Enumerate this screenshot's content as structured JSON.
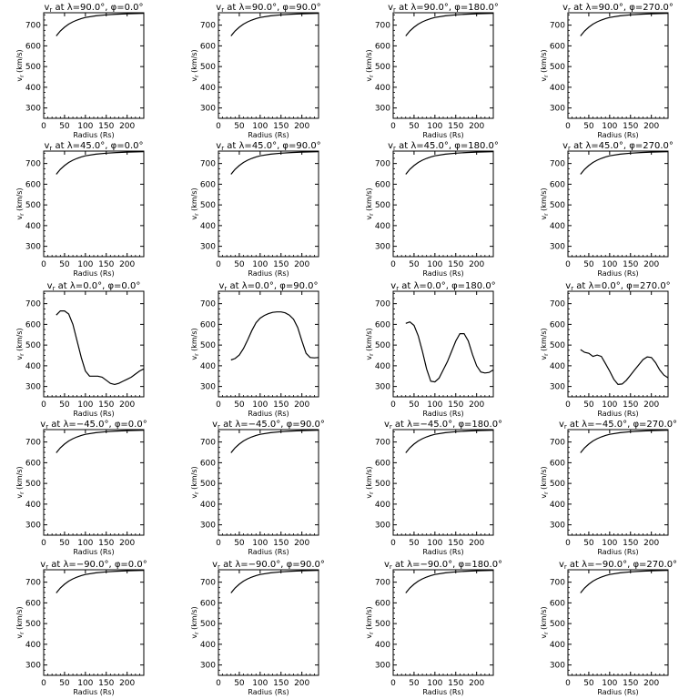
{
  "figure": {
    "shared_xlabel": "Radius (Rs)",
    "shared_ylabel": "v",
    "ylabel_subscript": "r",
    "ylabel_units": "(km/s)"
  },
  "chart_data": [
    {
      "type": "line",
      "title": "v_r at λ=90.0°, φ=0.0°",
      "xlabel": "Radius (Rs)",
      "ylabel": "v_r (km/s)",
      "xlim": [
        0,
        240
      ],
      "ylim": [
        250,
        760
      ],
      "xticks": [
        0,
        50,
        100,
        150,
        200
      ],
      "yticks": [
        300,
        400,
        500,
        600,
        700
      ],
      "x": [
        30,
        40,
        50,
        60,
        70,
        80,
        90,
        100,
        125,
        150,
        175,
        200,
        240
      ],
      "y": [
        648,
        672,
        690,
        705,
        716,
        725,
        732,
        737,
        745,
        750,
        753,
        755,
        757
      ]
    },
    {
      "type": "line",
      "title": "v_r at λ=90.0°, φ=90.0°",
      "xlabel": "Radius (Rs)",
      "ylabel": "v_r (km/s)",
      "xlim": [
        0,
        240
      ],
      "ylim": [
        250,
        760
      ],
      "xticks": [
        0,
        50,
        100,
        150,
        200
      ],
      "yticks": [
        300,
        400,
        500,
        600,
        700
      ],
      "x": [
        30,
        40,
        50,
        60,
        70,
        80,
        90,
        100,
        125,
        150,
        175,
        200,
        240
      ],
      "y": [
        648,
        672,
        690,
        705,
        716,
        725,
        732,
        737,
        745,
        750,
        753,
        755,
        757
      ]
    },
    {
      "type": "line",
      "title": "v_r at λ=90.0°, φ=180.0°",
      "xlabel": "Radius (Rs)",
      "ylabel": "v_r (km/s)",
      "xlim": [
        0,
        240
      ],
      "ylim": [
        250,
        760
      ],
      "xticks": [
        0,
        50,
        100,
        150,
        200
      ],
      "yticks": [
        300,
        400,
        500,
        600,
        700
      ],
      "x": [
        30,
        40,
        50,
        60,
        70,
        80,
        90,
        100,
        125,
        150,
        175,
        200,
        240
      ],
      "y": [
        648,
        672,
        690,
        705,
        716,
        725,
        732,
        737,
        745,
        750,
        753,
        755,
        757
      ]
    },
    {
      "type": "line",
      "title": "v_r at λ=90.0°, φ=270.0°",
      "xlabel": "Radius (Rs)",
      "ylabel": "v_r (km/s)",
      "xlim": [
        0,
        240
      ],
      "ylim": [
        250,
        760
      ],
      "xticks": [
        0,
        50,
        100,
        150,
        200
      ],
      "yticks": [
        300,
        400,
        500,
        600,
        700
      ],
      "x": [
        30,
        40,
        50,
        60,
        70,
        80,
        90,
        100,
        125,
        150,
        175,
        200,
        240
      ],
      "y": [
        648,
        672,
        690,
        705,
        716,
        725,
        732,
        737,
        745,
        750,
        753,
        755,
        757
      ]
    },
    {
      "type": "line",
      "title": "v_r at λ=45.0°, φ=0.0°",
      "xlabel": "Radius (Rs)",
      "ylabel": "v_r (km/s)",
      "xlim": [
        0,
        240
      ],
      "ylim": [
        250,
        760
      ],
      "xticks": [
        0,
        50,
        100,
        150,
        200
      ],
      "yticks": [
        300,
        400,
        500,
        600,
        700
      ],
      "x": [
        30,
        40,
        50,
        60,
        70,
        80,
        90,
        100,
        125,
        150,
        175,
        200,
        240
      ],
      "y": [
        648,
        672,
        690,
        705,
        716,
        725,
        732,
        737,
        745,
        750,
        753,
        755,
        757
      ]
    },
    {
      "type": "line",
      "title": "v_r at λ=45.0°, φ=90.0°",
      "xlabel": "Radius (Rs)",
      "ylabel": "v_r (km/s)",
      "xlim": [
        0,
        240
      ],
      "ylim": [
        250,
        760
      ],
      "xticks": [
        0,
        50,
        100,
        150,
        200
      ],
      "yticks": [
        300,
        400,
        500,
        600,
        700
      ],
      "x": [
        30,
        40,
        50,
        60,
        70,
        80,
        90,
        100,
        125,
        150,
        175,
        200,
        240
      ],
      "y": [
        648,
        672,
        690,
        705,
        716,
        725,
        732,
        737,
        745,
        750,
        753,
        755,
        757
      ]
    },
    {
      "type": "line",
      "title": "v_r at λ=45.0°, φ=180.0°",
      "xlabel": "Radius (Rs)",
      "ylabel": "v_r (km/s)",
      "xlim": [
        0,
        240
      ],
      "ylim": [
        250,
        760
      ],
      "xticks": [
        0,
        50,
        100,
        150,
        200
      ],
      "yticks": [
        300,
        400,
        500,
        600,
        700
      ],
      "x": [
        30,
        40,
        50,
        60,
        70,
        80,
        90,
        100,
        125,
        150,
        175,
        200,
        240
      ],
      "y": [
        648,
        672,
        690,
        705,
        716,
        725,
        732,
        737,
        745,
        750,
        753,
        755,
        757
      ]
    },
    {
      "type": "line",
      "title": "v_r at λ=45.0°, φ=270.0°",
      "xlabel": "Radius (Rs)",
      "ylabel": "v_r (km/s)",
      "xlim": [
        0,
        240
      ],
      "ylim": [
        250,
        760
      ],
      "xticks": [
        0,
        50,
        100,
        150,
        200
      ],
      "yticks": [
        300,
        400,
        500,
        600,
        700
      ],
      "x": [
        30,
        40,
        50,
        60,
        70,
        80,
        90,
        100,
        125,
        150,
        175,
        200,
        240
      ],
      "y": [
        648,
        672,
        690,
        705,
        716,
        725,
        732,
        737,
        745,
        750,
        753,
        755,
        757
      ]
    },
    {
      "type": "line",
      "title": "v_r at λ=0.0°, φ=0.0°",
      "xlabel": "Radius (Rs)",
      "ylabel": "v_r (km/s)",
      "xlim": [
        0,
        240
      ],
      "ylim": [
        250,
        760
      ],
      "xticks": [
        0,
        50,
        100,
        150,
        200
      ],
      "yticks": [
        300,
        400,
        500,
        600,
        700
      ],
      "x": [
        30,
        40,
        50,
        60,
        70,
        80,
        90,
        100,
        110,
        120,
        130,
        140,
        150,
        160,
        170,
        180,
        190,
        200,
        210,
        220,
        230,
        240
      ],
      "y": [
        645,
        665,
        665,
        650,
        600,
        520,
        440,
        375,
        350,
        350,
        350,
        345,
        330,
        315,
        310,
        315,
        325,
        335,
        345,
        360,
        375,
        385
      ]
    },
    {
      "type": "line",
      "title": "v_r at λ=0.0°, φ=90.0°",
      "xlabel": "Radius (Rs)",
      "ylabel": "v_r (km/s)",
      "xlim": [
        0,
        240
      ],
      "ylim": [
        250,
        760
      ],
      "xticks": [
        0,
        50,
        100,
        150,
        200
      ],
      "yticks": [
        300,
        400,
        500,
        600,
        700
      ],
      "x": [
        30,
        40,
        50,
        60,
        70,
        80,
        90,
        100,
        110,
        120,
        130,
        140,
        150,
        160,
        170,
        180,
        190,
        200,
        210,
        220,
        230,
        240
      ],
      "y": [
        428,
        435,
        452,
        483,
        525,
        570,
        608,
        630,
        643,
        652,
        658,
        660,
        660,
        656,
        645,
        625,
        585,
        520,
        460,
        440,
        438,
        440
      ]
    },
    {
      "type": "line",
      "title": "v_r at λ=0.0°, φ=180.0°",
      "xlabel": "Radius (Rs)",
      "ylabel": "v_r (km/s)",
      "xlim": [
        0,
        240
      ],
      "ylim": [
        250,
        760
      ],
      "xticks": [
        0,
        50,
        100,
        150,
        200
      ],
      "yticks": [
        300,
        400,
        500,
        600,
        700
      ],
      "x": [
        30,
        40,
        50,
        60,
        70,
        80,
        90,
        100,
        110,
        120,
        130,
        140,
        150,
        160,
        170,
        180,
        190,
        200,
        210,
        220,
        230,
        240
      ],
      "y": [
        605,
        612,
        595,
        545,
        470,
        385,
        325,
        322,
        340,
        380,
        420,
        470,
        520,
        555,
        555,
        520,
        455,
        400,
        370,
        365,
        368,
        380
      ]
    },
    {
      "type": "line",
      "title": "v_r at λ=0.0°, φ=270.0°",
      "xlabel": "Radius (Rs)",
      "ylabel": "v_r (km/s)",
      "xlim": [
        0,
        240
      ],
      "ylim": [
        250,
        760
      ],
      "xticks": [
        0,
        50,
        100,
        150,
        200
      ],
      "yticks": [
        300,
        400,
        500,
        600,
        700
      ],
      "x": [
        30,
        40,
        50,
        60,
        70,
        80,
        90,
        100,
        110,
        120,
        130,
        140,
        150,
        160,
        170,
        180,
        190,
        200,
        210,
        220,
        230,
        240
      ],
      "y": [
        478,
        465,
        460,
        445,
        452,
        445,
        410,
        375,
        335,
        310,
        312,
        330,
        355,
        380,
        405,
        430,
        443,
        440,
        415,
        380,
        355,
        342
      ]
    },
    {
      "type": "line",
      "title": "v_r at λ=−45.0°, φ=0.0°",
      "xlabel": "Radius (Rs)",
      "ylabel": "v_r (km/s)",
      "xlim": [
        0,
        240
      ],
      "ylim": [
        250,
        760
      ],
      "xticks": [
        0,
        50,
        100,
        150,
        200
      ],
      "yticks": [
        300,
        400,
        500,
        600,
        700
      ],
      "x": [
        30,
        40,
        50,
        60,
        70,
        80,
        90,
        100,
        125,
        150,
        175,
        200,
        240
      ],
      "y": [
        648,
        672,
        690,
        705,
        716,
        725,
        732,
        737,
        745,
        750,
        753,
        755,
        757
      ]
    },
    {
      "type": "line",
      "title": "v_r at λ=−45.0°, φ=90.0°",
      "xlabel": "Radius (Rs)",
      "ylabel": "v_r (km/s)",
      "xlim": [
        0,
        240
      ],
      "ylim": [
        250,
        760
      ],
      "xticks": [
        0,
        50,
        100,
        150,
        200
      ],
      "yticks": [
        300,
        400,
        500,
        600,
        700
      ],
      "x": [
        30,
        40,
        50,
        60,
        70,
        80,
        90,
        100,
        125,
        150,
        175,
        200,
        240
      ],
      "y": [
        648,
        672,
        690,
        705,
        716,
        725,
        732,
        737,
        745,
        750,
        753,
        755,
        757
      ]
    },
    {
      "type": "line",
      "title": "v_r at λ=−45.0°, φ=180.0°",
      "xlabel": "Radius (Rs)",
      "ylabel": "v_r (km/s)",
      "xlim": [
        0,
        240
      ],
      "ylim": [
        250,
        760
      ],
      "xticks": [
        0,
        50,
        100,
        150,
        200
      ],
      "yticks": [
        300,
        400,
        500,
        600,
        700
      ],
      "x": [
        30,
        40,
        50,
        60,
        70,
        80,
        90,
        100,
        125,
        150,
        175,
        200,
        240
      ],
      "y": [
        648,
        672,
        690,
        705,
        716,
        725,
        732,
        737,
        745,
        750,
        753,
        755,
        757
      ]
    },
    {
      "type": "line",
      "title": "v_r at λ=−45.0°, φ=270.0°",
      "xlabel": "Radius (Rs)",
      "ylabel": "v_r (km/s)",
      "xlim": [
        0,
        240
      ],
      "ylim": [
        250,
        760
      ],
      "xticks": [
        0,
        50,
        100,
        150,
        200
      ],
      "yticks": [
        300,
        400,
        500,
        600,
        700
      ],
      "x": [
        30,
        40,
        50,
        60,
        70,
        80,
        90,
        100,
        125,
        150,
        175,
        200,
        240
      ],
      "y": [
        648,
        672,
        690,
        705,
        716,
        725,
        732,
        737,
        745,
        750,
        753,
        755,
        757
      ]
    },
    {
      "type": "line",
      "title": "v_r at λ=−90.0°, φ=0.0°",
      "xlabel": "Radius (Rs)",
      "ylabel": "v_r (km/s)",
      "xlim": [
        0,
        240
      ],
      "ylim": [
        250,
        760
      ],
      "xticks": [
        0,
        50,
        100,
        150,
        200
      ],
      "yticks": [
        300,
        400,
        500,
        600,
        700
      ],
      "x": [
        30,
        40,
        50,
        60,
        70,
        80,
        90,
        100,
        125,
        150,
        175,
        200,
        240
      ],
      "y": [
        648,
        672,
        690,
        705,
        716,
        725,
        732,
        737,
        745,
        750,
        753,
        755,
        757
      ]
    },
    {
      "type": "line",
      "title": "v_r at λ=−90.0°, φ=90.0°",
      "xlabel": "Radius (Rs)",
      "ylabel": "v_r (km/s)",
      "xlim": [
        0,
        240
      ],
      "ylim": [
        250,
        760
      ],
      "xticks": [
        0,
        50,
        100,
        150,
        200
      ],
      "yticks": [
        300,
        400,
        500,
        600,
        700
      ],
      "x": [
        30,
        40,
        50,
        60,
        70,
        80,
        90,
        100,
        125,
        150,
        175,
        200,
        240
      ],
      "y": [
        648,
        672,
        690,
        705,
        716,
        725,
        732,
        737,
        745,
        750,
        753,
        755,
        757
      ]
    },
    {
      "type": "line",
      "title": "v_r at λ=−90.0°, φ=180.0°",
      "xlabel": "Radius (Rs)",
      "ylabel": "v_r (km/s)",
      "xlim": [
        0,
        240
      ],
      "ylim": [
        250,
        760
      ],
      "xticks": [
        0,
        50,
        100,
        150,
        200
      ],
      "yticks": [
        300,
        400,
        500,
        600,
        700
      ],
      "x": [
        30,
        40,
        50,
        60,
        70,
        80,
        90,
        100,
        125,
        150,
        175,
        200,
        240
      ],
      "y": [
        648,
        672,
        690,
        705,
        716,
        725,
        732,
        737,
        745,
        750,
        753,
        755,
        757
      ]
    },
    {
      "type": "line",
      "title": "v_r at λ=−90.0°, φ=270.0°",
      "xlabel": "Radius (Rs)",
      "ylabel": "v_r (km/s)",
      "xlim": [
        0,
        240
      ],
      "ylim": [
        250,
        760
      ],
      "xticks": [
        0,
        50,
        100,
        150,
        200
      ],
      "yticks": [
        300,
        400,
        500,
        600,
        700
      ],
      "x": [
        30,
        40,
        50,
        60,
        70,
        80,
        90,
        100,
        125,
        150,
        175,
        200,
        240
      ],
      "y": [
        648,
        672,
        690,
        705,
        716,
        725,
        732,
        737,
        745,
        750,
        753,
        755,
        757
      ]
    }
  ]
}
